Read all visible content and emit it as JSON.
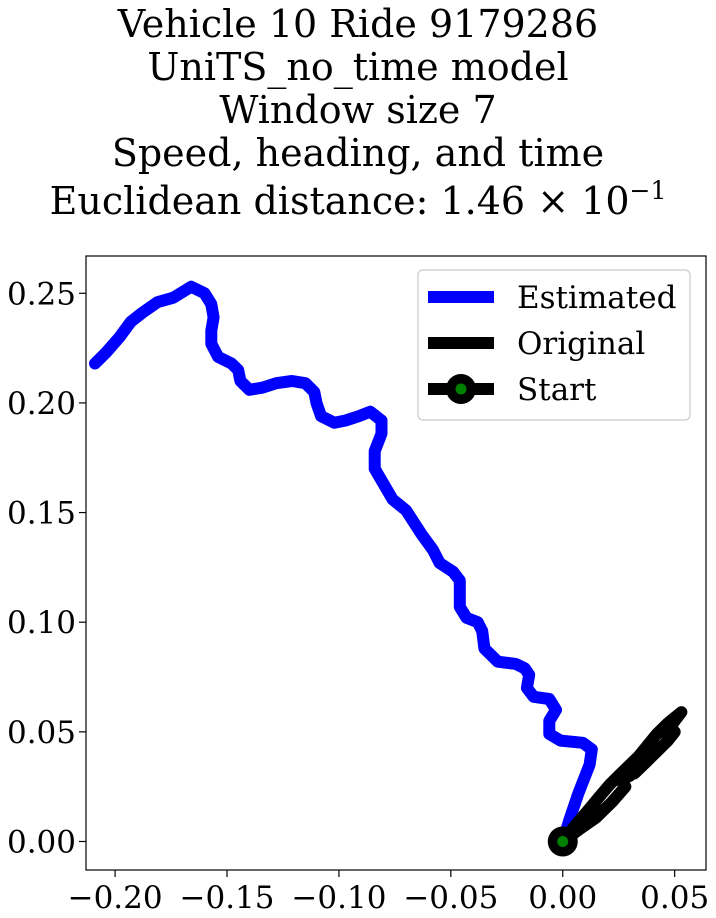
{
  "title": {
    "lines": [
      "Vehicle 10 Ride 9179286",
      "UniTS_no_time model",
      "Window size 7",
      "Speed, heading, and time"
    ],
    "distance_prefix": "Euclidean distance: 1.46",
    "distance_times": "×",
    "distance_base": "10",
    "distance_exponent": "−1"
  },
  "chart_data": {
    "type": "line",
    "xlim": [
      -0.213,
      0.064
    ],
    "ylim": [
      -0.013,
      0.267
    ],
    "x_ticks": [
      -0.2,
      -0.15,
      -0.1,
      -0.05,
      0.0,
      0.05
    ],
    "x_tick_labels": [
      "−0.20",
      "−0.15",
      "−0.10",
      "−0.05",
      "0.00",
      "0.05"
    ],
    "y_ticks": [
      0.0,
      0.05,
      0.1,
      0.15,
      0.2,
      0.25
    ],
    "y_tick_labels": [
      "0.00",
      "0.05",
      "0.10",
      "0.15",
      "0.20",
      "0.25"
    ],
    "grid": false,
    "legend_position": "top-right",
    "series": [
      {
        "name": "Estimated",
        "color": "#0000ff",
        "points": [
          [
            0.0,
            0.0
          ],
          [
            0.003,
            0.01
          ],
          [
            0.007,
            0.022
          ],
          [
            0.012,
            0.035
          ],
          [
            0.013,
            0.042
          ],
          [
            0.009,
            0.045
          ],
          [
            -0.001,
            0.046
          ],
          [
            -0.006,
            0.049
          ],
          [
            -0.006,
            0.055
          ],
          [
            -0.003,
            0.06
          ],
          [
            -0.006,
            0.065
          ],
          [
            -0.013,
            0.066
          ],
          [
            -0.016,
            0.07
          ],
          [
            -0.015,
            0.076
          ],
          [
            -0.017,
            0.079
          ],
          [
            -0.021,
            0.081
          ],
          [
            -0.029,
            0.082
          ],
          [
            -0.035,
            0.088
          ],
          [
            -0.036,
            0.096
          ],
          [
            -0.038,
            0.1
          ],
          [
            -0.043,
            0.102
          ],
          [
            -0.046,
            0.107
          ],
          [
            -0.046,
            0.113
          ],
          [
            -0.046,
            0.119
          ],
          [
            -0.049,
            0.123
          ],
          [
            -0.055,
            0.127
          ],
          [
            -0.058,
            0.133
          ],
          [
            -0.063,
            0.14
          ],
          [
            -0.07,
            0.151
          ],
          [
            -0.076,
            0.156
          ],
          [
            -0.08,
            0.163
          ],
          [
            -0.084,
            0.17
          ],
          [
            -0.084,
            0.178
          ],
          [
            -0.081,
            0.186
          ],
          [
            -0.081,
            0.192
          ],
          [
            -0.086,
            0.196
          ],
          [
            -0.091,
            0.194
          ],
          [
            -0.097,
            0.192
          ],
          [
            -0.102,
            0.191
          ],
          [
            -0.108,
            0.194
          ],
          [
            -0.11,
            0.2
          ],
          [
            -0.111,
            0.205
          ],
          [
            -0.115,
            0.209
          ],
          [
            -0.121,
            0.21
          ],
          [
            -0.128,
            0.209
          ],
          [
            -0.134,
            0.207
          ],
          [
            -0.14,
            0.206
          ],
          [
            -0.144,
            0.21
          ],
          [
            -0.145,
            0.215
          ],
          [
            -0.148,
            0.218
          ],
          [
            -0.154,
            0.221
          ],
          [
            -0.157,
            0.227
          ],
          [
            -0.157,
            0.233
          ],
          [
            -0.156,
            0.239
          ],
          [
            -0.157,
            0.245
          ],
          [
            -0.16,
            0.25
          ],
          [
            -0.166,
            0.253
          ],
          [
            -0.174,
            0.248
          ],
          [
            -0.181,
            0.246
          ],
          [
            -0.188,
            0.241
          ],
          [
            -0.193,
            0.237
          ],
          [
            -0.198,
            0.23
          ],
          [
            -0.204,
            0.223
          ],
          [
            -0.209,
            0.218
          ]
        ]
      },
      {
        "name": "Original",
        "color": "#000000",
        "points": [
          [
            0.0,
            0.0
          ],
          [
            0.008,
            0.006
          ],
          [
            0.015,
            0.011
          ],
          [
            0.022,
            0.018
          ],
          [
            0.028,
            0.025
          ],
          [
            0.026,
            0.028
          ],
          [
            0.03,
            0.03
          ],
          [
            0.035,
            0.034
          ],
          [
            0.032,
            0.031
          ],
          [
            0.038,
            0.037
          ],
          [
            0.044,
            0.043
          ],
          [
            0.041,
            0.04
          ],
          [
            0.047,
            0.046
          ],
          [
            0.05,
            0.05
          ],
          [
            0.046,
            0.049
          ],
          [
            0.05,
            0.055
          ],
          [
            0.053,
            0.059
          ],
          [
            0.047,
            0.054
          ],
          [
            0.042,
            0.049
          ],
          [
            0.038,
            0.044
          ],
          [
            0.034,
            0.039
          ],
          [
            0.029,
            0.034
          ],
          [
            0.025,
            0.03
          ],
          [
            0.021,
            0.026
          ],
          [
            0.016,
            0.02
          ],
          [
            0.012,
            0.015
          ],
          [
            0.007,
            0.009
          ],
          [
            0.003,
            0.004
          ],
          [
            0.0,
            0.0
          ]
        ]
      }
    ],
    "start": {
      "name": "Start",
      "x": 0.0,
      "y": 0.0,
      "outer_color": "#000000",
      "inner_color": "#008000"
    }
  }
}
